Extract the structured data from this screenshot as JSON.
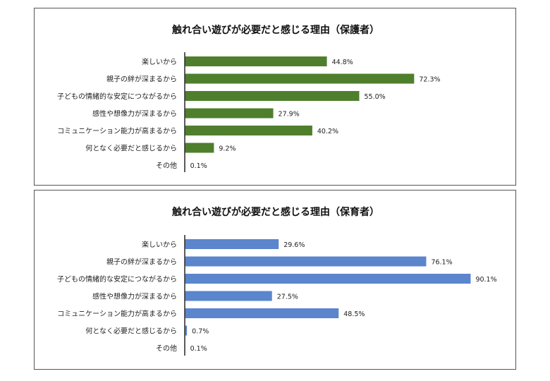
{
  "chart_data": [
    {
      "type": "bar",
      "orientation": "horizontal",
      "title": "触れ合い遊びが必要だと感じる理由（保護者）",
      "categories": [
        "楽しいから",
        "親子の絆が深まるから",
        "子どもの情緒的な安定につながるから",
        "感性や想像力が深まるから",
        "コミュニケーション能力が高まるから",
        "何となく必要だと感じるから",
        "その他"
      ],
      "values": [
        44.8,
        72.3,
        55.0,
        27.9,
        40.2,
        9.2,
        0.1
      ],
      "value_labels": [
        "44.8%",
        "72.3%",
        "55.0%",
        "27.9%",
        "40.2%",
        "9.2%",
        "0.1%"
      ],
      "color": "#4f7f2d",
      "xlim": [
        0,
        90
      ],
      "grid": false,
      "legend": "none"
    },
    {
      "type": "bar",
      "orientation": "horizontal",
      "title": "触れ合い遊びが必要だと感じる理由（保育者）",
      "categories": [
        "楽しいから",
        "親子の絆が深まるから",
        "子どもの情緒的な安定につながるから",
        "感性や想像力が深まるから",
        "コミュニケーション能力が高まるから",
        "何となく必要だと感じるから",
        "その他"
      ],
      "values": [
        29.6,
        76.1,
        90.1,
        27.5,
        48.5,
        0.7,
        0.1
      ],
      "value_labels": [
        "29.6%",
        "76.1%",
        "90.1%",
        "27.5%",
        "48.5%",
        "0.7%",
        "0.1%"
      ],
      "color": "#5b85cc",
      "xlim": [
        0,
        90
      ],
      "grid": false,
      "legend": "none"
    }
  ]
}
